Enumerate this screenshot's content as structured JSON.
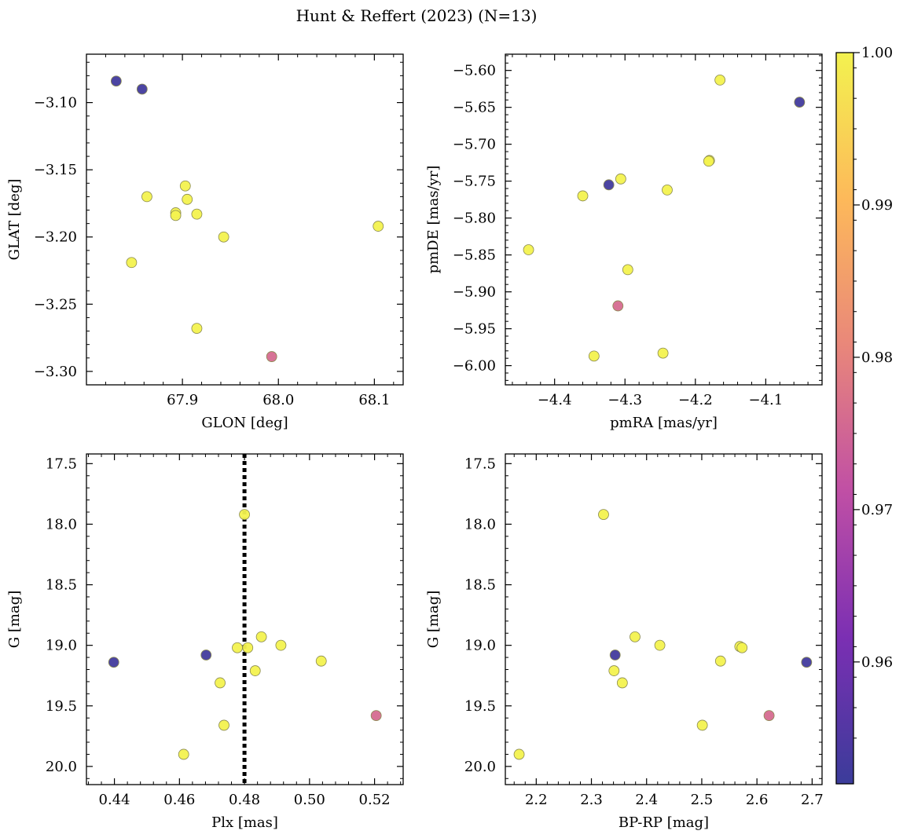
{
  "title": "Hunt & Reffert (2023) (N=13)",
  "colors": {
    "stops": [
      "#3b3c9a",
      "#7b2fb3",
      "#c04fa5",
      "#e9877a",
      "#fdb95a",
      "#f3f24f"
    ],
    "edge": "#8a8a50"
  },
  "colorbar": {
    "min": 0.952,
    "max": 1.0,
    "ticks": [
      0.96,
      0.97,
      0.98,
      0.99,
      1.0
    ],
    "tick_labels": [
      "0.96",
      "0.97",
      "0.98",
      "0.99",
      "1.00"
    ]
  },
  "chart_data": [
    {
      "type": "scatter",
      "xlabel": "GLON [deg]",
      "ylabel": "GLAT [deg]",
      "xlim": [
        67.8,
        68.13
      ],
      "ylim": [
        -3.31,
        -3.064
      ],
      "xticks": [
        67.9,
        68.0,
        68.1
      ],
      "xtick_labels": [
        "67.9",
        "68.0",
        "68.1"
      ],
      "yticks": [
        -3.3,
        -3.25,
        -3.2,
        -3.15,
        -3.1
      ],
      "ytick_labels": [
        "−3.30",
        "−3.25",
        "−3.20",
        "−3.15",
        "−3.10"
      ],
      "points": [
        {
          "x": 67.831,
          "y": -3.084,
          "c": 0.953
        },
        {
          "x": 67.858,
          "y": -3.09,
          "c": 0.953
        },
        {
          "x": 67.863,
          "y": -3.17,
          "c": 1.0
        },
        {
          "x": 67.903,
          "y": -3.162,
          "c": 1.0
        },
        {
          "x": 67.905,
          "y": -3.172,
          "c": 1.0
        },
        {
          "x": 67.893,
          "y": -3.182,
          "c": 1.0
        },
        {
          "x": 67.893,
          "y": -3.184,
          "c": 1.0
        },
        {
          "x": 67.915,
          "y": -3.183,
          "c": 1.0
        },
        {
          "x": 67.943,
          "y": -3.2,
          "c": 1.0
        },
        {
          "x": 67.847,
          "y": -3.219,
          "c": 1.0
        },
        {
          "x": 67.915,
          "y": -3.268,
          "c": 1.0
        },
        {
          "x": 67.993,
          "y": -3.289,
          "c": 0.976
        },
        {
          "x": 68.104,
          "y": -3.192,
          "c": 1.0
        }
      ]
    },
    {
      "type": "scatter",
      "xlabel": "pmRA [mas/yr]",
      "ylabel": "pmDE [mas/yr]",
      "xlim": [
        -4.47,
        -4.02
      ],
      "ylim": [
        -6.026,
        -5.578
      ],
      "xticks": [
        -4.4,
        -4.3,
        -4.2,
        -4.1
      ],
      "xtick_labels": [
        "−4.4",
        "−4.3",
        "−4.2",
        "−4.1"
      ],
      "yticks": [
        -6.0,
        -5.95,
        -5.9,
        -5.85,
        -5.8,
        -5.75,
        -5.7,
        -5.65,
        -5.6
      ],
      "ytick_labels": [
        "−6.00",
        "−5.95",
        "−5.90",
        "−5.85",
        "−5.80",
        "−5.75",
        "−5.70",
        "−5.65",
        "−5.60"
      ],
      "points": [
        {
          "x": -4.165,
          "y": -5.613,
          "c": 1.0
        },
        {
          "x": -4.052,
          "y": -5.643,
          "c": 0.953
        },
        {
          "x": -4.18,
          "y": -5.722,
          "c": 1.0
        },
        {
          "x": -4.181,
          "y": -5.723,
          "c": 1.0
        },
        {
          "x": -4.306,
          "y": -5.747,
          "c": 1.0
        },
        {
          "x": -4.323,
          "y": -5.755,
          "c": 0.953
        },
        {
          "x": -4.24,
          "y": -5.762,
          "c": 1.0
        },
        {
          "x": -4.36,
          "y": -5.77,
          "c": 1.0
        },
        {
          "x": -4.437,
          "y": -5.843,
          "c": 1.0
        },
        {
          "x": -4.296,
          "y": -5.87,
          "c": 1.0
        },
        {
          "x": -4.31,
          "y": -5.919,
          "c": 0.976
        },
        {
          "x": -4.246,
          "y": -5.983,
          "c": 1.0
        },
        {
          "x": -4.344,
          "y": -5.987,
          "c": 1.0
        }
      ]
    },
    {
      "type": "scatter",
      "xlabel": "Plx [mas]",
      "ylabel": "G [mag]",
      "xlim": [
        0.4314,
        0.5288
      ],
      "ylim": [
        20.15,
        17.42
      ],
      "xticks": [
        0.44,
        0.46,
        0.48,
        0.5,
        0.52
      ],
      "xtick_labels": [
        "0.44",
        "0.46",
        "0.48",
        "0.50",
        "0.52"
      ],
      "yticks": [
        17.5,
        18.0,
        18.5,
        19.0,
        19.5,
        20.0
      ],
      "ytick_labels": [
        "17.5",
        "18.0",
        "18.5",
        "19.0",
        "19.5",
        "20.0"
      ],
      "vline": 0.48,
      "points": [
        {
          "x": 0.48,
          "y": 17.92,
          "c": 1.0
        },
        {
          "x": 0.4398,
          "y": 19.14,
          "c": 0.953
        },
        {
          "x": 0.4682,
          "y": 19.08,
          "c": 0.953
        },
        {
          "x": 0.4778,
          "y": 19.02,
          "c": 1.0
        },
        {
          "x": 0.481,
          "y": 19.02,
          "c": 1.0
        },
        {
          "x": 0.4852,
          "y": 18.93,
          "c": 1.0
        },
        {
          "x": 0.4912,
          "y": 19.0,
          "c": 1.0
        },
        {
          "x": 0.5036,
          "y": 19.13,
          "c": 1.0
        },
        {
          "x": 0.4833,
          "y": 19.21,
          "c": 1.0
        },
        {
          "x": 0.4725,
          "y": 19.31,
          "c": 1.0
        },
        {
          "x": 0.4737,
          "y": 19.66,
          "c": 1.0
        },
        {
          "x": 0.4613,
          "y": 19.9,
          "c": 1.0
        },
        {
          "x": 0.5205,
          "y": 19.58,
          "c": 0.976
        }
      ]
    },
    {
      "type": "scatter",
      "xlabel": "BP-RP [mag]",
      "ylabel": "G [mag]",
      "xlim": [
        2.144,
        2.718
      ],
      "ylim": [
        20.15,
        17.42
      ],
      "xticks": [
        2.2,
        2.3,
        2.4,
        2.5,
        2.6,
        2.7
      ],
      "xtick_labels": [
        "2.2",
        "2.3",
        "2.4",
        "2.5",
        "2.6",
        "2.7"
      ],
      "yticks": [
        17.5,
        18.0,
        18.5,
        19.0,
        19.5,
        20.0
      ],
      "ytick_labels": [
        "17.5",
        "18.0",
        "18.5",
        "19.0",
        "19.5",
        "20.0"
      ],
      "points": [
        {
          "x": 2.322,
          "y": 17.92,
          "c": 1.0
        },
        {
          "x": 2.343,
          "y": 19.08,
          "c": 0.953
        },
        {
          "x": 2.379,
          "y": 18.93,
          "c": 1.0
        },
        {
          "x": 2.424,
          "y": 19.0,
          "c": 1.0
        },
        {
          "x": 2.569,
          "y": 19.01,
          "c": 1.0
        },
        {
          "x": 2.573,
          "y": 19.02,
          "c": 1.0
        },
        {
          "x": 2.534,
          "y": 19.13,
          "c": 1.0
        },
        {
          "x": 2.69,
          "y": 19.14,
          "c": 0.953
        },
        {
          "x": 2.341,
          "y": 19.21,
          "c": 1.0
        },
        {
          "x": 2.356,
          "y": 19.31,
          "c": 1.0
        },
        {
          "x": 2.501,
          "y": 19.66,
          "c": 1.0
        },
        {
          "x": 2.622,
          "y": 19.58,
          "c": 0.976
        },
        {
          "x": 2.169,
          "y": 19.9,
          "c": 1.0
        }
      ]
    }
  ]
}
